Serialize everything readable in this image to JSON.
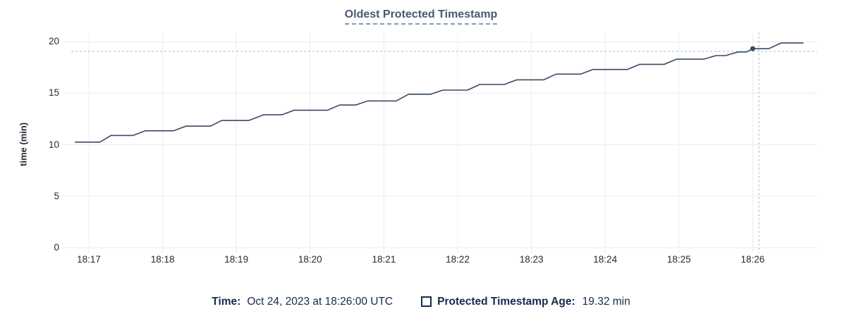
{
  "title": "Oldest Protected Timestamp",
  "y_axis_label": "time (min)",
  "legend": {
    "time_label": "Time:",
    "time_value": "Oct 24, 2023 at 18:26:00 UTC",
    "series_swatch": "unchecked-square-outline",
    "series_label": "Protected Timestamp Age:",
    "series_value": "19.32 min"
  },
  "colors": {
    "line": "#394a63",
    "dot": "#394a63",
    "grid": "#ececec",
    "crosshair": "#a6b8ca",
    "title": "#475872",
    "axis_text": "#242a35",
    "legend_text": "#152a4d"
  },
  "chart_data": {
    "type": "line",
    "title": "Oldest Protected Timestamp",
    "xlabel": "",
    "ylabel": "time (min)",
    "ylim": [
      0,
      20
    ],
    "y_ticks": [
      0,
      5,
      10,
      15,
      20
    ],
    "x_ticks": [
      "18:17",
      "18:18",
      "18:19",
      "18:20",
      "18:21",
      "18:22",
      "18:23",
      "18:24",
      "18:25",
      "18:26"
    ],
    "grid": true,
    "legend_position": "bottom-center",
    "series": [
      {
        "name": "Protected Timestamp Age",
        "unit": "min",
        "color": "#394a63",
        "points": [
          [
            "18:16:49",
            10.25
          ],
          [
            "18:17:09",
            10.25
          ],
          [
            "18:17:18",
            10.9
          ],
          [
            "18:17:36",
            10.9
          ],
          [
            "18:17:46",
            11.35
          ],
          [
            "18:18:09",
            11.35
          ],
          [
            "18:18:19",
            11.8
          ],
          [
            "18:18:39",
            11.8
          ],
          [
            "18:18:48",
            12.35
          ],
          [
            "18:19:10",
            12.35
          ],
          [
            "18:19:22",
            12.9
          ],
          [
            "18:19:37",
            12.9
          ],
          [
            "18:19:47",
            13.35
          ],
          [
            "18:20:14",
            13.35
          ],
          [
            "18:20:24",
            13.85
          ],
          [
            "18:20:37",
            13.85
          ],
          [
            "18:20:47",
            14.25
          ],
          [
            "18:21:10",
            14.25
          ],
          [
            "18:21:20",
            14.9
          ],
          [
            "18:21:38",
            14.9
          ],
          [
            "18:21:48",
            15.3
          ],
          [
            "18:22:08",
            15.3
          ],
          [
            "18:22:18",
            15.85
          ],
          [
            "18:22:38",
            15.85
          ],
          [
            "18:22:48",
            16.3
          ],
          [
            "18:23:10",
            16.3
          ],
          [
            "18:23:20",
            16.85
          ],
          [
            "18:23:40",
            16.85
          ],
          [
            "18:23:50",
            17.3
          ],
          [
            "18:24:18",
            17.3
          ],
          [
            "18:24:28",
            17.8
          ],
          [
            "18:24:48",
            17.8
          ],
          [
            "18:24:58",
            18.3
          ],
          [
            "18:25:20",
            18.3
          ],
          [
            "18:25:30",
            18.65
          ],
          [
            "18:25:38",
            18.65
          ],
          [
            "18:25:48",
            19.0
          ],
          [
            "18:25:55",
            19.0
          ],
          [
            "18:26:00",
            19.32
          ],
          [
            "18:26:13",
            19.32
          ],
          [
            "18:26:23",
            19.87
          ],
          [
            "18:26:41",
            19.87
          ]
        ]
      }
    ],
    "hover": {
      "point": [
        "18:26:00",
        19.32
      ],
      "point_label": "19.32 min",
      "crosshair": {
        "x_time": "18:26:05",
        "y_value": 19.06
      }
    }
  }
}
